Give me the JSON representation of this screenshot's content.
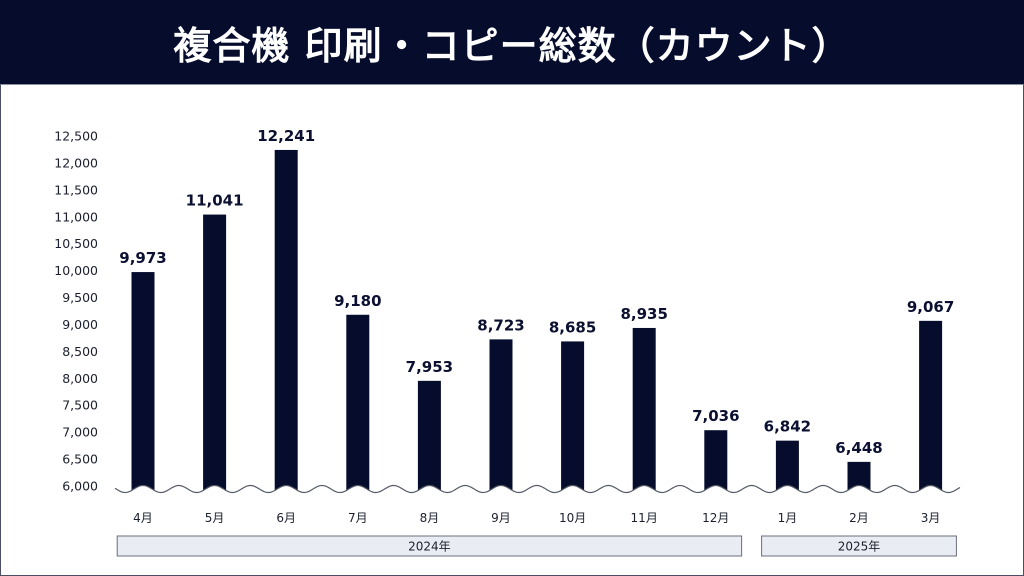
{
  "title": "複合機 印刷・コピー総数（カウント）",
  "chart_data": {
    "type": "bar",
    "title": "複合機 印刷・コピー総数（カウント）",
    "xlabel": "",
    "ylabel": "",
    "categories": [
      "4月",
      "5月",
      "6月",
      "7月",
      "8月",
      "9月",
      "10月",
      "11月",
      "12月",
      "1月",
      "2月",
      "3月"
    ],
    "values": [
      9973,
      11041,
      12241,
      9180,
      7953,
      8723,
      8685,
      8935,
      7036,
      6842,
      6448,
      9067
    ],
    "data_labels": [
      "9,973",
      "11,041",
      "12,241",
      "9,180",
      "7,953",
      "8,723",
      "8,685",
      "8,935",
      "7,036",
      "6,842",
      "6,448",
      "9,067"
    ],
    "ylim": [
      6000,
      12500
    ],
    "yticks": [
      6000,
      6500,
      7000,
      7500,
      8000,
      8500,
      9000,
      9500,
      10000,
      10500,
      11000,
      11500,
      12000,
      12500
    ],
    "ytick_labels": [
      "6,000",
      "6,500",
      "7,000",
      "7,500",
      "8,000",
      "8,500",
      "9,000",
      "9,500",
      "10,000",
      "10,500",
      "11,000",
      "11,500",
      "12,000",
      "12,500"
    ],
    "axis_break": true,
    "grid": false,
    "legend": "none",
    "year_groups": [
      {
        "label": "2024年",
        "from": 0,
        "to": 8
      },
      {
        "label": "2025年",
        "from": 9,
        "to": 11
      }
    ],
    "bar_color": "#060d2c"
  }
}
